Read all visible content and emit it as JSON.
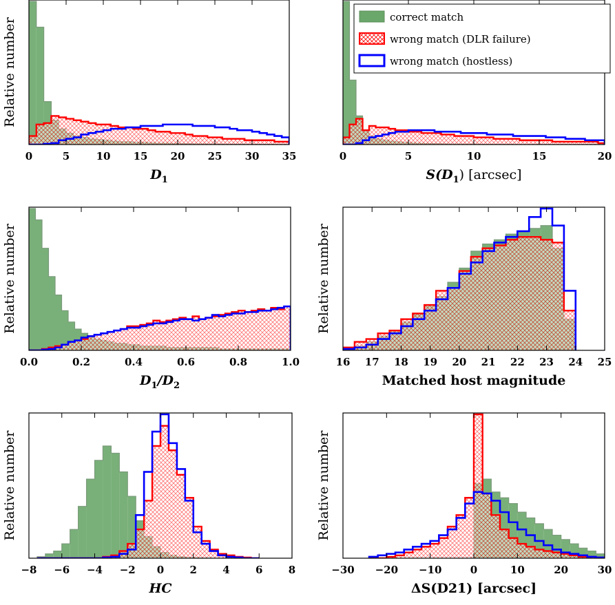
{
  "colors": {
    "correct": "#6aa76a",
    "dlr": "#ff0000",
    "hostless": "#0000ff",
    "axes": "#000000"
  },
  "legend": {
    "placement": "top-right of top-right panel",
    "entries": [
      {
        "key": "correct",
        "label": "correct match"
      },
      {
        "key": "dlr",
        "label": "wrong match (DLR failure)"
      },
      {
        "key": "hostless",
        "label": "wrong match (hostless)"
      }
    ]
  },
  "chart_data": [
    {
      "id": "d1",
      "type": "bar",
      "histogram": true,
      "xlabel": "D",
      "xlabel_sub": "1",
      "xlabel_suffix": "",
      "ylabel": "Relative number",
      "xlim": [
        0,
        35
      ],
      "ylim": [
        0,
        1
      ],
      "xticks": [
        0,
        5,
        10,
        15,
        20,
        25,
        30,
        35
      ],
      "bin_edges": [
        0,
        1,
        2,
        3,
        4,
        5,
        6,
        7,
        8,
        9,
        10,
        11,
        12,
        13,
        14,
        15,
        16,
        17,
        18,
        19,
        20,
        21,
        22,
        23,
        24,
        25,
        26,
        27,
        28,
        29,
        30,
        31,
        32,
        33,
        34,
        35
      ],
      "series": [
        {
          "key": "correct",
          "values": [
            1.0,
            0.82,
            0.3,
            0.17,
            0.11,
            0.08,
            0.06,
            0.05,
            0.04,
            0.035,
            0.03,
            0.025,
            0.02,
            0.02,
            0.015,
            0.015,
            0.012,
            0.01,
            0.01,
            0.008,
            0.007,
            0.006,
            0.005,
            0.005,
            0.004,
            0.004,
            0.003,
            0.003,
            0.003,
            0.002,
            0.002,
            0.002,
            0.002,
            0.001,
            0.001
          ]
        },
        {
          "key": "dlr",
          "values": [
            0.06,
            0.14,
            0.15,
            0.2,
            0.19,
            0.18,
            0.17,
            0.16,
            0.15,
            0.14,
            0.14,
            0.13,
            0.12,
            0.12,
            0.11,
            0.11,
            0.1,
            0.09,
            0.09,
            0.08,
            0.08,
            0.07,
            0.06,
            0.06,
            0.05,
            0.05,
            0.04,
            0.04,
            0.04,
            0.03,
            0.03,
            0.03,
            0.03,
            0.02,
            0.02
          ]
        },
        {
          "key": "hostless",
          "values": [
            0.0,
            0.0,
            0.005,
            0.01,
            0.03,
            0.04,
            0.05,
            0.07,
            0.08,
            0.09,
            0.1,
            0.11,
            0.11,
            0.12,
            0.12,
            0.13,
            0.13,
            0.13,
            0.14,
            0.14,
            0.14,
            0.14,
            0.13,
            0.13,
            0.13,
            0.12,
            0.12,
            0.11,
            0.1,
            0.1,
            0.09,
            0.08,
            0.07,
            0.06,
            0.05
          ]
        }
      ]
    },
    {
      "id": "sd1",
      "type": "bar",
      "histogram": true,
      "xlabel": "S(D",
      "xlabel_sub": "1",
      "xlabel_suffix": ") [arcsec]",
      "ylabel": "",
      "xlim": [
        0,
        20
      ],
      "ylim": [
        0,
        1
      ],
      "xticks": [
        0,
        5,
        10,
        15,
        20
      ],
      "bin_edges": [
        0,
        0.5,
        1,
        1.5,
        2,
        2.5,
        3,
        3.5,
        4,
        4.5,
        5,
        5.5,
        6,
        6.5,
        7,
        7.5,
        8,
        8.5,
        9,
        9.5,
        10,
        10.5,
        11,
        11.5,
        12,
        12.5,
        13,
        13.5,
        14,
        14.5,
        15,
        15.5,
        16,
        16.5,
        17,
        17.5,
        18,
        18.5,
        19,
        19.5,
        20
      ],
      "series": [
        {
          "key": "correct",
          "values": [
            1.0,
            0.45,
            0.2,
            0.1,
            0.06,
            0.04,
            0.03,
            0.025,
            0.02,
            0.015,
            0.012,
            0.01,
            0.008,
            0.007,
            0.006,
            0.005,
            0.004,
            0.004,
            0.003,
            0.003,
            0.003,
            0.002,
            0.002,
            0.002,
            0.002,
            0.002,
            0.001,
            0.001,
            0.001,
            0.001,
            0.001,
            0.001,
            0.001,
            0.001,
            0.001,
            0.001,
            0.001,
            0.001,
            0.001,
            0.001
          ]
        },
        {
          "key": "dlr",
          "values": [
            0.05,
            0.14,
            0.18,
            0.1,
            0.13,
            0.12,
            0.12,
            0.11,
            0.1,
            0.1,
            0.09,
            0.09,
            0.08,
            0.08,
            0.08,
            0.07,
            0.07,
            0.06,
            0.06,
            0.06,
            0.05,
            0.05,
            0.05,
            0.04,
            0.04,
            0.04,
            0.04,
            0.03,
            0.03,
            0.03,
            0.03,
            0.03,
            0.02,
            0.02,
            0.02,
            0.02,
            0.02,
            0.02,
            0.02,
            0.01
          ]
        },
        {
          "key": "hostless",
          "values": [
            0.0,
            0.0,
            0.01,
            0.03,
            0.05,
            0.06,
            0.07,
            0.08,
            0.09,
            0.09,
            0.1,
            0.1,
            0.1,
            0.1,
            0.09,
            0.09,
            0.09,
            0.09,
            0.08,
            0.08,
            0.08,
            0.08,
            0.07,
            0.07,
            0.07,
            0.07,
            0.06,
            0.06,
            0.06,
            0.06,
            0.06,
            0.05,
            0.05,
            0.05,
            0.04,
            0.04,
            0.04,
            0.03,
            0.03,
            0.03
          ]
        }
      ]
    },
    {
      "id": "ratio",
      "type": "bar",
      "histogram": true,
      "xlabel": "D",
      "xlabel_sub": "1",
      "xlabel_suffix": "/D",
      "xlabel_sub2": "2",
      "ylabel": "Relative number",
      "xlim": [
        0,
        1
      ],
      "ylim": [
        0,
        1
      ],
      "xticks": [
        0.0,
        0.2,
        0.4,
        0.6,
        0.8,
        1.0
      ],
      "tick_decimals": 1,
      "bin_edges": [
        0,
        0.025,
        0.05,
        0.075,
        0.1,
        0.125,
        0.15,
        0.175,
        0.2,
        0.225,
        0.25,
        0.275,
        0.3,
        0.325,
        0.35,
        0.375,
        0.4,
        0.425,
        0.45,
        0.475,
        0.5,
        0.525,
        0.55,
        0.575,
        0.6,
        0.625,
        0.65,
        0.675,
        0.7,
        0.725,
        0.75,
        0.775,
        0.8,
        0.825,
        0.85,
        0.875,
        0.9,
        0.925,
        0.95,
        0.975,
        1.0
      ],
      "series": [
        {
          "key": "correct",
          "values": [
            1.0,
            0.92,
            0.72,
            0.52,
            0.39,
            0.28,
            0.2,
            0.15,
            0.12,
            0.1,
            0.08,
            0.07,
            0.06,
            0.05,
            0.05,
            0.04,
            0.04,
            0.03,
            0.03,
            0.03,
            0.03,
            0.02,
            0.02,
            0.02,
            0.02,
            0.02,
            0.02,
            0.02,
            0.02,
            0.01,
            0.01,
            0.01,
            0.01,
            0.01,
            0.01,
            0.01,
            0.01,
            0.01,
            0.01,
            0.01
          ]
        },
        {
          "key": "dlr",
          "values": [
            0.0,
            0.0,
            0.01,
            0.02,
            0.03,
            0.04,
            0.06,
            0.07,
            0.08,
            0.1,
            0.11,
            0.12,
            0.13,
            0.14,
            0.15,
            0.17,
            0.17,
            0.18,
            0.19,
            0.21,
            0.2,
            0.21,
            0.22,
            0.23,
            0.22,
            0.24,
            0.22,
            0.23,
            0.24,
            0.25,
            0.26,
            0.27,
            0.28,
            0.27,
            0.28,
            0.29,
            0.28,
            0.3,
            0.29,
            0.31
          ]
        },
        {
          "key": "hostless",
          "values": [
            0.0,
            0.0,
            0.005,
            0.01,
            0.02,
            0.04,
            0.06,
            0.07,
            0.09,
            0.1,
            0.11,
            0.12,
            0.13,
            0.14,
            0.15,
            0.16,
            0.16,
            0.17,
            0.18,
            0.19,
            0.19,
            0.2,
            0.21,
            0.22,
            0.22,
            0.21,
            0.22,
            0.23,
            0.25,
            0.24,
            0.25,
            0.26,
            0.26,
            0.27,
            0.27,
            0.28,
            0.28,
            0.29,
            0.3,
            0.31
          ]
        }
      ]
    },
    {
      "id": "mag",
      "type": "bar",
      "histogram": true,
      "xlabel": "Matched host magnitude",
      "xlabel_sub": "",
      "xlabel_suffix": "",
      "ylabel": "Relative number",
      "xlim": [
        16,
        25
      ],
      "ylim": [
        0,
        1
      ],
      "xticks": [
        16,
        17,
        18,
        19,
        20,
        21,
        22,
        23,
        24,
        25
      ],
      "bin_edges": [
        16,
        16.4,
        16.8,
        17.2,
        17.6,
        18.0,
        18.4,
        18.8,
        19.2,
        19.6,
        20.0,
        20.4,
        20.8,
        21.2,
        21.6,
        22.0,
        22.4,
        22.8,
        23.2,
        23.6,
        24.0
      ],
      "series": [
        {
          "key": "correct",
          "values": [
            0.01,
            0.03,
            0.06,
            0.1,
            0.14,
            0.2,
            0.26,
            0.32,
            0.38,
            0.48,
            0.58,
            0.7,
            0.75,
            0.78,
            0.82,
            0.84,
            0.86,
            0.88,
            0.72,
            0.22
          ]
        },
        {
          "key": "dlr",
          "values": [
            0.02,
            0.06,
            0.08,
            0.12,
            0.14,
            0.22,
            0.26,
            0.32,
            0.42,
            0.44,
            0.56,
            0.66,
            0.72,
            0.74,
            0.78,
            0.8,
            0.8,
            0.78,
            0.76,
            0.28
          ]
        },
        {
          "key": "hostless",
          "values": [
            0.01,
            0.02,
            0.04,
            0.08,
            0.12,
            0.17,
            0.22,
            0.28,
            0.36,
            0.44,
            0.54,
            0.62,
            0.7,
            0.76,
            0.8,
            0.84,
            0.94,
            1.0,
            0.88,
            0.42
          ]
        }
      ]
    },
    {
      "id": "hc",
      "type": "bar",
      "histogram": true,
      "xlabel": "HC",
      "xlabel_sub": "",
      "xlabel_suffix": "",
      "xlabel_italic": true,
      "ylabel": "Relative number",
      "xlim": [
        -8,
        8
      ],
      "ylim": [
        0,
        1
      ],
      "xticks": [
        -8,
        -6,
        -4,
        -2,
        0,
        2,
        4,
        6,
        8
      ],
      "bin_edges": [
        -7.5,
        -7.0,
        -6.5,
        -6.0,
        -5.5,
        -5.0,
        -4.5,
        -4.0,
        -3.5,
        -3.0,
        -2.5,
        -2.0,
        -1.5,
        -1.0,
        -0.5,
        0.0,
        0.5,
        1.0,
        1.5,
        2.0,
        2.5,
        3.0,
        3.5,
        4.0,
        4.5,
        5.0,
        5.5,
        6.0
      ],
      "series": [
        {
          "key": "correct",
          "values": [
            0.01,
            0.03,
            0.05,
            0.1,
            0.2,
            0.36,
            0.55,
            0.68,
            0.78,
            0.73,
            0.6,
            0.43,
            0.26,
            0.15,
            0.08,
            0.04,
            0.02,
            0.01,
            0.005,
            0.003,
            0.002,
            0.001,
            0.0,
            0.0,
            0.0,
            0.0,
            0.0
          ]
        },
        {
          "key": "dlr",
          "values": [
            0.0,
            0.0,
            0.0,
            0.0,
            0.0,
            0.0,
            0.0,
            0.0,
            0.01,
            0.02,
            0.05,
            0.1,
            0.2,
            0.4,
            0.78,
            0.92,
            0.75,
            0.58,
            0.42,
            0.22,
            0.12,
            0.06,
            0.03,
            0.02,
            0.01,
            0.005,
            0.0
          ]
        },
        {
          "key": "hostless",
          "values": [
            0.0,
            0.0,
            0.0,
            0.0,
            0.0,
            0.0,
            0.0,
            0.0,
            0.005,
            0.01,
            0.03,
            0.06,
            0.3,
            0.6,
            0.88,
            1.0,
            0.8,
            0.62,
            0.4,
            0.18,
            0.1,
            0.05,
            0.02,
            0.01,
            0.005,
            0.0,
            0.0
          ]
        }
      ]
    },
    {
      "id": "ds",
      "type": "bar",
      "histogram": true,
      "xlabel": "ΔS(D21) [arcsec]",
      "xlabel_sub": "",
      "xlabel_suffix": "",
      "ylabel": "Relative number",
      "xlim": [
        -30,
        30
      ],
      "ylim": [
        0,
        1
      ],
      "xticks": [
        -30,
        -20,
        -10,
        0,
        10,
        20,
        30
      ],
      "bin_edges": [
        -24,
        -22,
        -20,
        -18,
        -16,
        -14,
        -12,
        -10,
        -8,
        -6,
        -4,
        -2,
        0,
        2,
        4,
        6,
        8,
        10,
        12,
        14,
        16,
        18,
        20,
        22,
        24,
        26,
        28,
        30
      ],
      "series": [
        {
          "key": "correct",
          "values": [
            0.0,
            0.0,
            0.0,
            0.0,
            0.0,
            0.0,
            0.0,
            0.0,
            0.0,
            0.0,
            0.0,
            0.0,
            0.52,
            0.55,
            0.46,
            0.42,
            0.38,
            0.32,
            0.28,
            0.24,
            0.2,
            0.16,
            0.13,
            0.1,
            0.07,
            0.05,
            0.03
          ]
        },
        {
          "key": "dlr",
          "values": [
            0.0,
            0.0,
            0.01,
            0.02,
            0.04,
            0.06,
            0.08,
            0.1,
            0.14,
            0.22,
            0.3,
            0.42,
            1.0,
            0.45,
            0.3,
            0.2,
            0.14,
            0.1,
            0.08,
            0.06,
            0.05,
            0.04,
            0.03,
            0.02,
            0.01,
            0.01,
            0.005
          ]
        },
        {
          "key": "hostless",
          "values": [
            0.01,
            0.02,
            0.03,
            0.04,
            0.06,
            0.08,
            0.1,
            0.12,
            0.16,
            0.2,
            0.28,
            0.38,
            0.46,
            0.45,
            0.4,
            0.32,
            0.25,
            0.2,
            0.16,
            0.12,
            0.09,
            0.06,
            0.04,
            0.03,
            0.02,
            0.01,
            0.005
          ]
        }
      ]
    }
  ]
}
